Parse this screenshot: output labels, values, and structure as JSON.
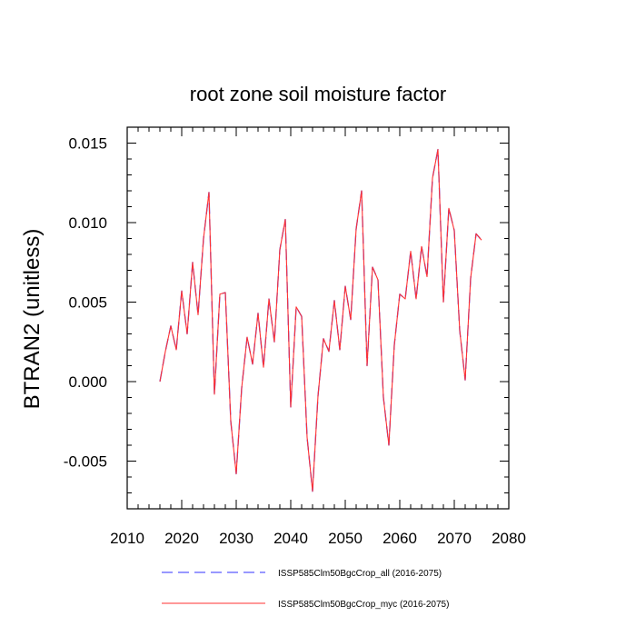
{
  "chart_data": {
    "type": "line",
    "title": "root zone soil moisture factor",
    "xlabel": "",
    "ylabel": "BTRAN2  (unitless)",
    "xlim": [
      2010,
      2080
    ],
    "ylim": [
      -0.008,
      0.016
    ],
    "xticks": [
      2010,
      2020,
      2030,
      2040,
      2050,
      2060,
      2070,
      2080
    ],
    "xtick_labels": [
      "2010",
      "2020",
      "2030",
      "2040",
      "2050",
      "2060",
      "2070",
      "2080"
    ],
    "yticks": [
      -0.005,
      0.0,
      0.005,
      0.01,
      0.015
    ],
    "ytick_labels": [
      "-0.005",
      "0.000",
      "0.005",
      "0.010",
      "0.015"
    ],
    "grid": false,
    "legend_position": "bottom",
    "x": [
      2016,
      2017,
      2018,
      2019,
      2020,
      2021,
      2022,
      2023,
      2024,
      2025,
      2026,
      2027,
      2028,
      2029,
      2030,
      2031,
      2032,
      2033,
      2034,
      2035,
      2036,
      2037,
      2038,
      2039,
      2040,
      2041,
      2042,
      2043,
      2044,
      2045,
      2046,
      2047,
      2048,
      2049,
      2050,
      2051,
      2052,
      2053,
      2054,
      2055,
      2056,
      2057,
      2058,
      2059,
      2060,
      2061,
      2062,
      2063,
      2064,
      2065,
      2066,
      2067,
      2068,
      2069,
      2070,
      2071,
      2072,
      2073,
      2074,
      2075
    ],
    "series": [
      {
        "name": "ISSP585Clm50BgcCrop_all (2016-2075)",
        "color": "#3232ff",
        "style": "dashed",
        "values": [
          0.0,
          0.0019,
          0.0035,
          0.002,
          0.0057,
          0.003,
          0.0075,
          0.0042,
          0.009,
          0.0119,
          -0.0008,
          0.0055,
          0.0056,
          -0.0025,
          -0.0058,
          -0.0004,
          0.0028,
          0.0011,
          0.0043,
          0.0009,
          0.0052,
          0.0025,
          0.0083,
          0.0102,
          -0.0016,
          0.0047,
          0.0041,
          -0.0035,
          -0.0069,
          -0.0009,
          0.0027,
          0.0019,
          0.0051,
          0.002,
          0.006,
          0.0039,
          0.0096,
          0.012,
          0.001,
          0.0072,
          0.0064,
          -0.001,
          -0.004,
          0.0023,
          0.0055,
          0.0052,
          0.0082,
          0.0052,
          0.0085,
          0.0066,
          0.0128,
          0.0146,
          0.005,
          0.0109,
          0.0095,
          0.0032,
          0.0001,
          0.0065,
          0.0093,
          0.0089
        ]
      },
      {
        "name": "ISSP585Clm50BgcCrop_myc (2016-2075)",
        "color": "#ff3232",
        "style": "solid",
        "values": [
          0.0,
          0.0019,
          0.0035,
          0.002,
          0.0057,
          0.003,
          0.0075,
          0.0042,
          0.009,
          0.0119,
          -0.0008,
          0.0055,
          0.0056,
          -0.0025,
          -0.0058,
          -0.0004,
          0.0028,
          0.0011,
          0.0043,
          0.0009,
          0.0052,
          0.0025,
          0.0083,
          0.0102,
          -0.0016,
          0.0047,
          0.0041,
          -0.0035,
          -0.0069,
          -0.0009,
          0.0027,
          0.0019,
          0.0051,
          0.002,
          0.006,
          0.0039,
          0.0096,
          0.012,
          0.001,
          0.0072,
          0.0064,
          -0.001,
          -0.004,
          0.0023,
          0.0055,
          0.0052,
          0.0082,
          0.0052,
          0.0085,
          0.0066,
          0.0128,
          0.0146,
          0.005,
          0.0109,
          0.0095,
          0.0032,
          0.0001,
          0.0065,
          0.0093,
          0.0089
        ]
      }
    ]
  }
}
